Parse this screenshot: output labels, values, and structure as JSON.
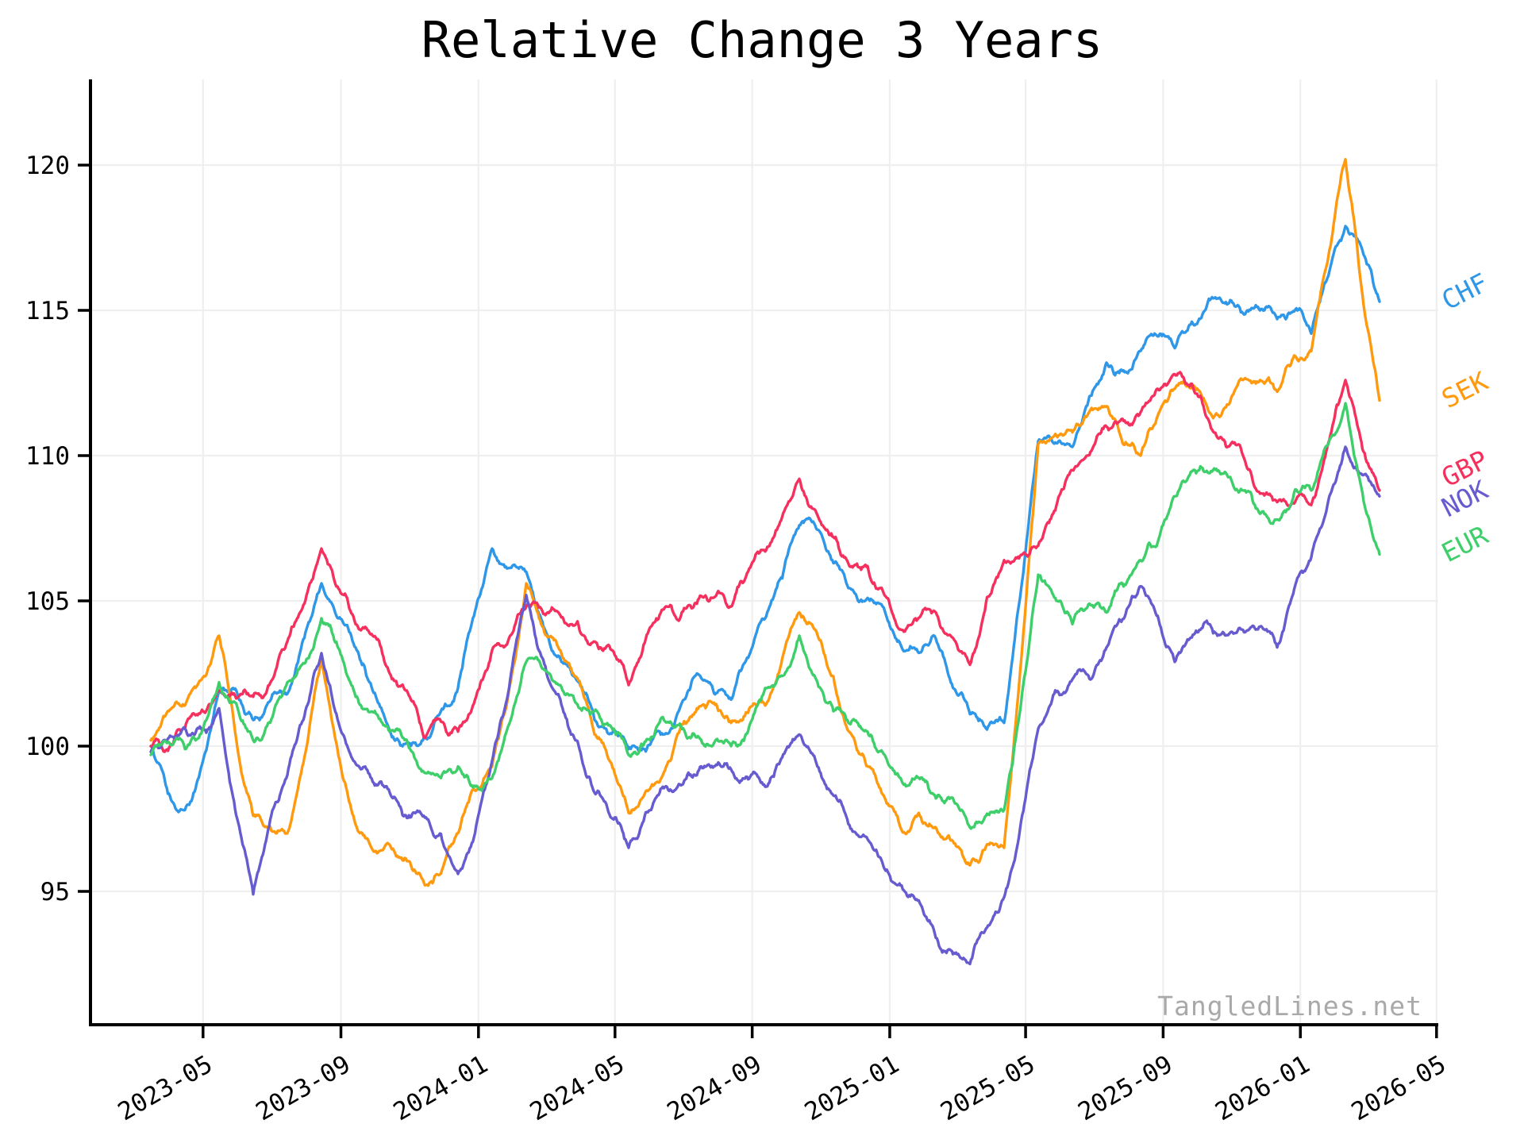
{
  "title": "Relative Change 3 Years",
  "watermark": "TangledLines.net",
  "chart_data": {
    "type": "line",
    "title": "Relative Change 3 Years",
    "xlabel": "",
    "ylabel": "",
    "x_range": {
      "start": "2023-03",
      "end": "2026-03",
      "anchor_interval": "monthly"
    },
    "ylim": [
      90.4,
      123.0
    ],
    "grid": true,
    "legend_position": "right-edge-rotated",
    "y_ticks": [
      95,
      100,
      105,
      110,
      115,
      120
    ],
    "x_ticks": [
      {
        "label": "2023-05",
        "t": 1.53
      },
      {
        "label": "2023-09",
        "t": 5.57
      },
      {
        "label": "2024-01",
        "t": 9.6
      },
      {
        "label": "2024-05",
        "t": 13.6
      },
      {
        "label": "2024-09",
        "t": 17.62
      },
      {
        "label": "2025-01",
        "t": 21.65
      },
      {
        "label": "2025-05",
        "t": 25.63
      },
      {
        "label": "2025-09",
        "t": 29.66
      },
      {
        "label": "2026-01",
        "t": 33.68
      },
      {
        "label": "2026-05",
        "t": 37.67
      }
    ],
    "series": [
      {
        "name": "CHF",
        "color": "#2f97e8",
        "values": [
          100.0,
          97.8,
          101.9,
          100.9,
          101.8,
          105.6,
          103.4,
          100.5,
          100.3,
          102.0,
          106.8,
          106.0,
          103.0,
          100.9,
          99.9,
          100.4,
          102.5,
          101.6,
          104.4,
          107.6,
          106.3,
          105.1,
          103.4,
          103.7,
          101.1,
          100.8,
          110.5,
          110.3,
          113.2,
          113.6,
          113.7,
          115.4,
          114.9,
          114.7,
          114.2,
          117.9,
          115.3
        ]
      },
      {
        "name": "SEK",
        "color": "#ff9a0f",
        "values": [
          100.2,
          101.4,
          103.8,
          97.6,
          97.0,
          103.0,
          97.3,
          96.6,
          95.3,
          97.0,
          99.3,
          105.6,
          103.3,
          100.4,
          97.7,
          99.0,
          101.3,
          100.8,
          101.4,
          104.6,
          102.4,
          99.3,
          97.1,
          97.2,
          95.9,
          96.5,
          110.4,
          110.8,
          111.7,
          110.0,
          112.3,
          111.5,
          112.6,
          112.2,
          113.6,
          120.2,
          111.9
        ]
      },
      {
        "name": "GBP",
        "color": "#f5305e",
        "values": [
          100.0,
          100.6,
          101.9,
          101.7,
          103.6,
          106.8,
          104.2,
          102.5,
          100.3,
          100.5,
          103.3,
          104.8,
          104.5,
          103.6,
          102.1,
          104.7,
          104.9,
          104.8,
          106.7,
          109.2,
          107.2,
          106.2,
          104.0,
          104.6,
          102.8,
          106.4,
          106.9,
          109.5,
          111.0,
          111.5,
          112.8,
          111.2,
          110.0,
          108.4,
          108.3,
          112.6,
          108.8
        ]
      },
      {
        "name": "NOK",
        "color": "#675bd0",
        "values": [
          99.8,
          100.6,
          101.3,
          94.9,
          99.0,
          103.2,
          99.4,
          98.4,
          97.6,
          95.6,
          99.5,
          105.2,
          101.6,
          98.4,
          96.5,
          98.6,
          99.0,
          99.2,
          98.6,
          100.4,
          98.3,
          96.8,
          95.2,
          93.4,
          92.5,
          94.8,
          100.6,
          102.3,
          103.4,
          105.5,
          102.9,
          104.2,
          104.0,
          103.4,
          106.5,
          110.3,
          108.6
        ]
      },
      {
        "name": "EUR",
        "color": "#3ecf6b",
        "values": [
          99.7,
          99.9,
          102.2,
          100.2,
          102.2,
          104.4,
          101.7,
          100.5,
          99.1,
          99.3,
          98.9,
          102.9,
          102.1,
          101.2,
          99.7,
          101.0,
          100.3,
          100.0,
          102.0,
          103.8,
          101.2,
          100.5,
          98.8,
          98.2,
          97.2,
          97.8,
          105.9,
          104.2,
          104.6,
          106.4,
          108.6,
          109.4,
          108.8,
          107.8,
          108.8,
          111.8,
          106.6
        ]
      }
    ],
    "render": {
      "seed": 7,
      "noise_levels": 5,
      "noise_amp": 0.55,
      "roughness": 0.55
    }
  }
}
